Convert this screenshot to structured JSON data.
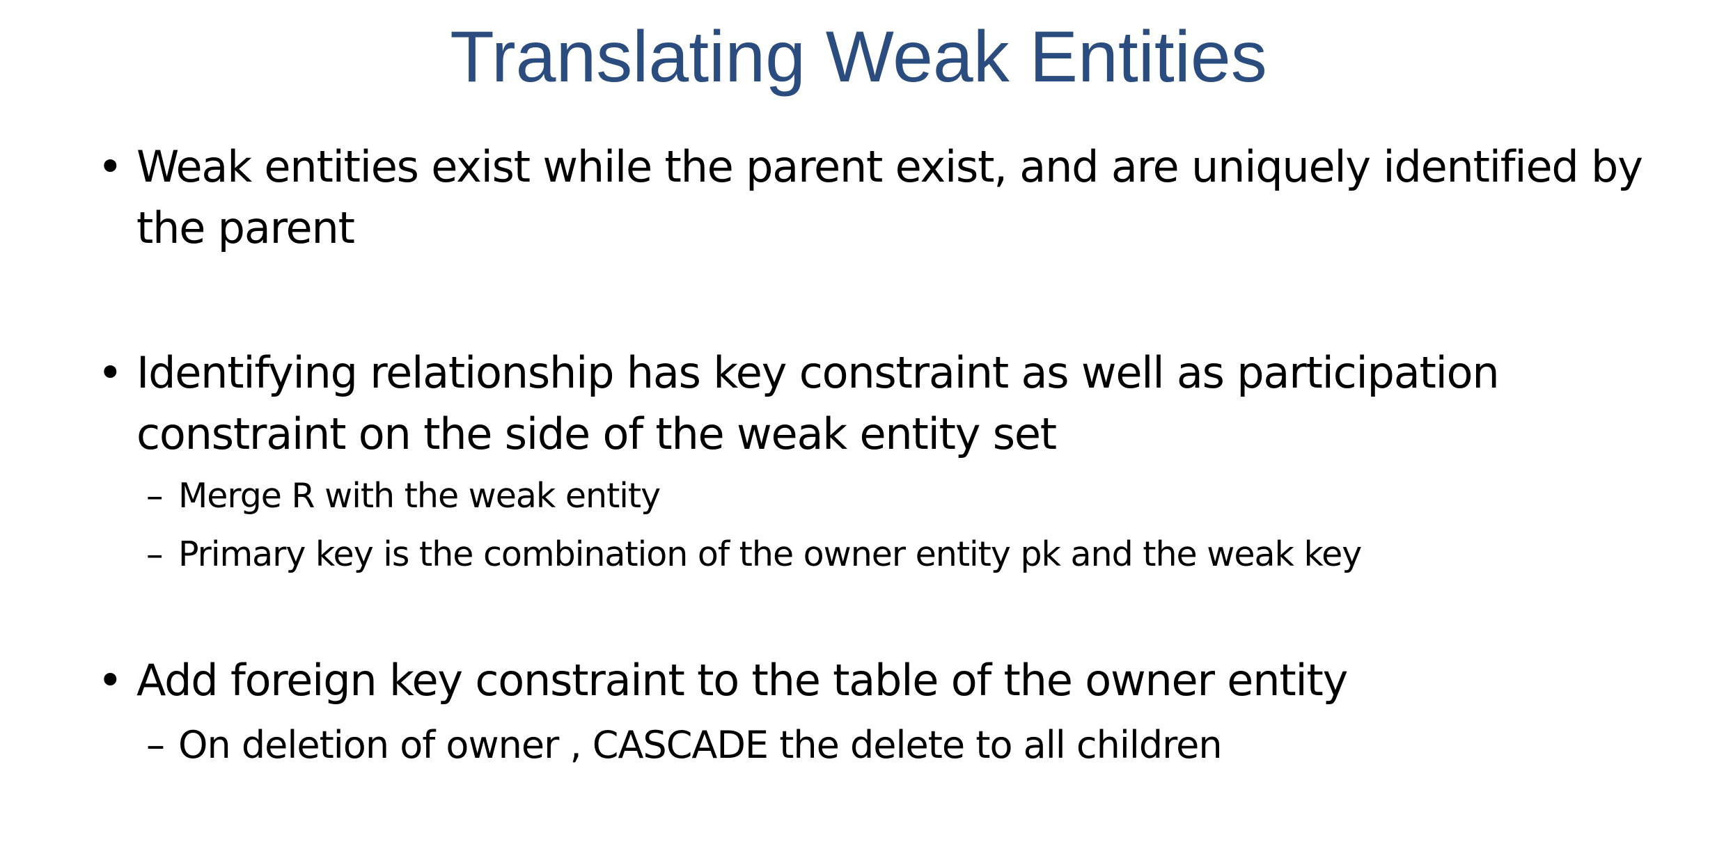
{
  "slide": {
    "title": "Translating Weak Entities",
    "title_color": "#2b4c7e",
    "bullets": [
      {
        "text": "Weak entities exist while the parent exist, and are uniquely identified by the parent",
        "subitems": []
      },
      {
        "text": "Identifying relationship has key constraint as well as participation constraint on the side of the weak entity set",
        "subitems": [
          "Merge R with the weak entity",
          "Primary key is the combination of the owner entity pk and the weak key"
        ]
      },
      {
        "text": "Add foreign key constraint to the table of the owner entity",
        "subitems": [
          "On deletion of owner , CASCADE the delete to all children"
        ]
      }
    ],
    "bullet_glyph": "•",
    "sub_glyph": "–"
  }
}
